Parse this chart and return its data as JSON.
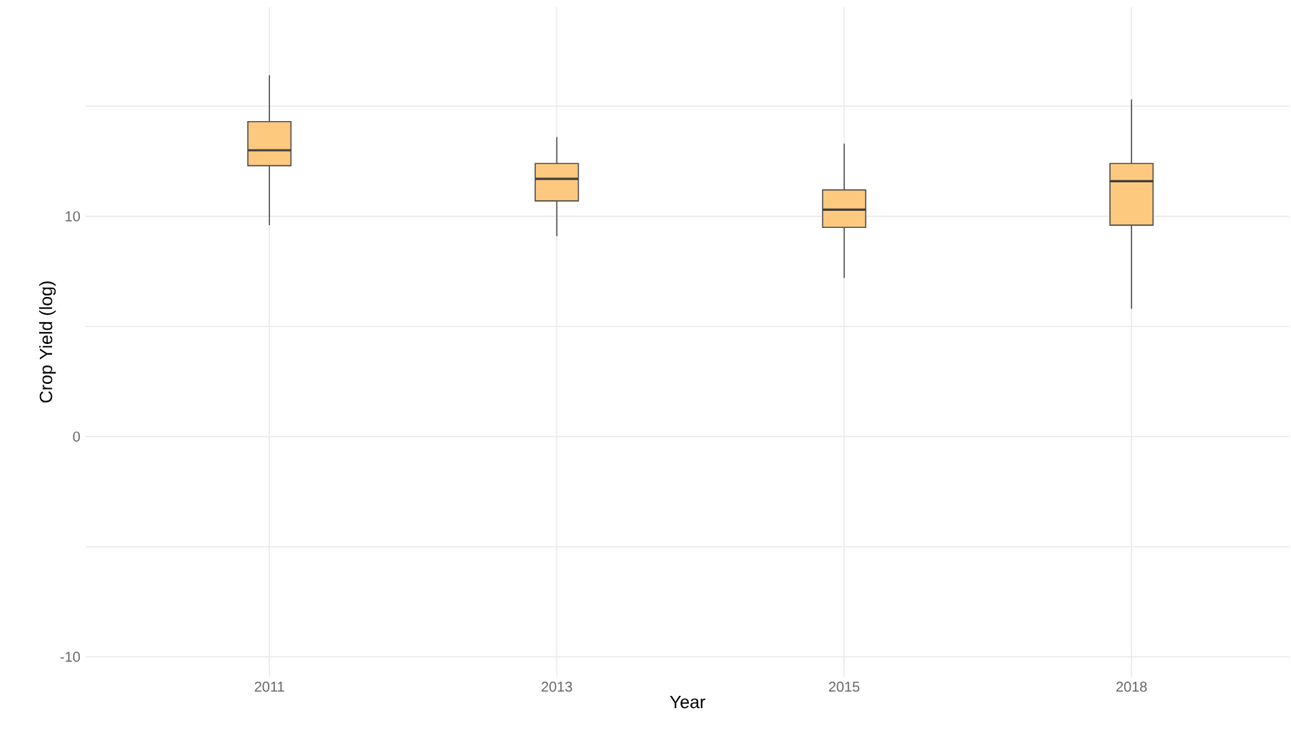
{
  "chart_data": {
    "type": "box",
    "xlabel": "Year",
    "ylabel": "Crop Yield (log)",
    "categories": [
      "2011",
      "2013",
      "2015",
      "2018"
    ],
    "series": [
      {
        "color": "#fdc97f",
        "boxes": [
          {
            "low": 9.6,
            "q1": 12.3,
            "median": 13.0,
            "q3": 14.3,
            "high": 16.4
          },
          {
            "low": 9.1,
            "q1": 10.7,
            "median": 11.7,
            "q3": 12.4,
            "high": 13.6
          },
          {
            "low": 7.2,
            "q1": 9.5,
            "median": 10.3,
            "q3": 11.2,
            "high": 13.3
          },
          {
            "low": 5.8,
            "q1": 9.6,
            "median": 11.6,
            "q3": 12.4,
            "high": 15.3
          }
        ]
      }
    ],
    "ylim": [
      -10.9,
      19.5
    ],
    "yticks": [
      -10,
      {
        "value": -5,
        "label": null
      },
      0,
      {
        "value": 5,
        "label": null
      },
      10,
      {
        "value": 15,
        "label": null
      }
    ],
    "grid": true
  }
}
